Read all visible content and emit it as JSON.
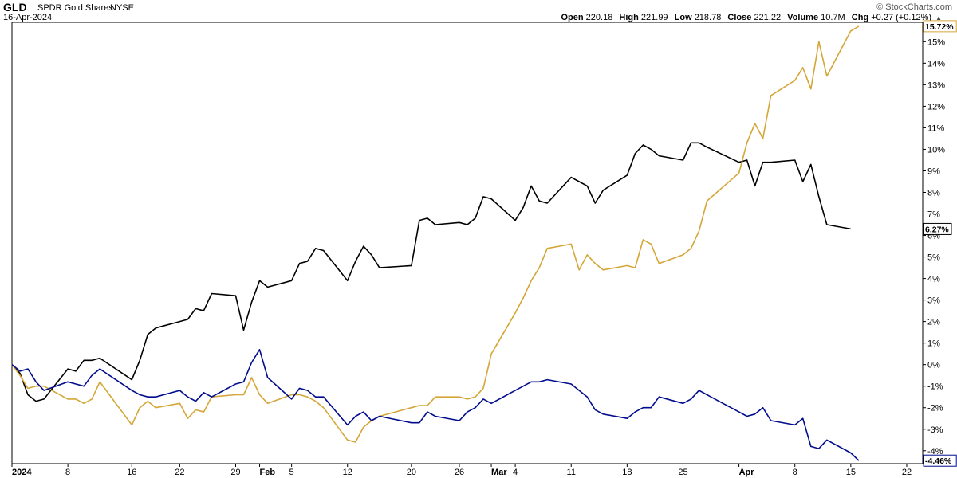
{
  "header": {
    "symbol": "GLD",
    "name": "SPDR Gold Shares",
    "exchange": "NYSE",
    "date": "16-Apr-2024",
    "brand": "© StockCharts.com",
    "open_label": "Open",
    "open": "220.18",
    "high_label": "High",
    "high": "221.99",
    "low_label": "Low",
    "low": "218.78",
    "close_label": "Close",
    "close": "221.22",
    "volume_label": "Volume",
    "volume": "10.7M",
    "chg_label": "Chg",
    "chg": "+0.27 (+0.12%)"
  },
  "chart_data": {
    "type": "line",
    "title": "",
    "xlabel": "",
    "ylabel": "",
    "x_range": [
      "2024-01-01",
      "2024-04-24"
    ],
    "ylim": [
      -4.6,
      15.9
    ],
    "grid": false,
    "y_axis_position": "right",
    "y_ticks": [
      -4,
      -3,
      -2,
      -1,
      0,
      1,
      2,
      3,
      4,
      5,
      6,
      7,
      8,
      9,
      10,
      11,
      12,
      13,
      14,
      15
    ],
    "y_tick_labels": [
      "-4%",
      "-3%",
      "-2%",
      "-1%",
      "0%",
      "1%",
      "2%",
      "3%",
      "4%",
      "5%",
      "6%",
      "7%",
      "8%",
      "9%",
      "10%",
      "11%",
      "12%",
      "13%",
      "14%",
      "15%"
    ],
    "x_ticks": [
      {
        "date": "2024-01-01",
        "label": "2024",
        "bold": true
      },
      {
        "date": "2024-01-08",
        "label": "8"
      },
      {
        "date": "2024-01-16",
        "label": "16"
      },
      {
        "date": "2024-01-22",
        "label": "22"
      },
      {
        "date": "2024-01-29",
        "label": "29"
      },
      {
        "date": "2024-02-01",
        "label": "Feb",
        "bold": true
      },
      {
        "date": "2024-02-05",
        "label": "5"
      },
      {
        "date": "2024-02-12",
        "label": "12"
      },
      {
        "date": "2024-02-20",
        "label": "20"
      },
      {
        "date": "2024-02-26",
        "label": "26"
      },
      {
        "date": "2024-03-01",
        "label": "Mar",
        "bold": true
      },
      {
        "date": "2024-03-04",
        "label": "4"
      },
      {
        "date": "2024-03-11",
        "label": "11"
      },
      {
        "date": "2024-03-18",
        "label": "18"
      },
      {
        "date": "2024-03-25",
        "label": "25"
      },
      {
        "date": "2024-04-01",
        "label": "Apr",
        "bold": true
      },
      {
        "date": "2024-04-08",
        "label": "8"
      },
      {
        "date": "2024-04-15",
        "label": "15"
      },
      {
        "date": "2024-04-22",
        "label": "22"
      }
    ],
    "series": [
      {
        "color": "#000000",
        "end_label": "6.27%",
        "points": [
          [
            "2024-01-01",
            0.0
          ],
          [
            "2024-01-02",
            -0.4
          ],
          [
            "2024-01-03",
            -1.4
          ],
          [
            "2024-01-04",
            -1.7
          ],
          [
            "2024-01-05",
            -1.6
          ],
          [
            "2024-01-08",
            -0.2
          ],
          [
            "2024-01-09",
            -0.3
          ],
          [
            "2024-01-10",
            0.2
          ],
          [
            "2024-01-11",
            0.2
          ],
          [
            "2024-01-12",
            0.3
          ],
          [
            "2024-01-16",
            -0.7
          ],
          [
            "2024-01-17",
            0.2
          ],
          [
            "2024-01-18",
            1.4
          ],
          [
            "2024-01-19",
            1.7
          ],
          [
            "2024-01-22",
            2.0
          ],
          [
            "2024-01-23",
            2.1
          ],
          [
            "2024-01-24",
            2.6
          ],
          [
            "2024-01-25",
            2.5
          ],
          [
            "2024-01-26",
            3.3
          ],
          [
            "2024-01-29",
            3.2
          ],
          [
            "2024-01-30",
            1.6
          ],
          [
            "2024-01-31",
            2.9
          ],
          [
            "2024-02-01",
            3.9
          ],
          [
            "2024-02-02",
            3.6
          ],
          [
            "2024-02-05",
            3.9
          ],
          [
            "2024-02-06",
            4.7
          ],
          [
            "2024-02-07",
            4.8
          ],
          [
            "2024-02-08",
            5.4
          ],
          [
            "2024-02-09",
            5.3
          ],
          [
            "2024-02-12",
            3.9
          ],
          [
            "2024-02-13",
            4.8
          ],
          [
            "2024-02-14",
            5.5
          ],
          [
            "2024-02-15",
            5.1
          ],
          [
            "2024-02-16",
            4.5
          ],
          [
            "2024-02-20",
            4.6
          ],
          [
            "2024-02-21",
            6.7
          ],
          [
            "2024-02-22",
            6.8
          ],
          [
            "2024-02-23",
            6.5
          ],
          [
            "2024-02-26",
            6.6
          ],
          [
            "2024-02-27",
            6.5
          ],
          [
            "2024-02-28",
            6.8
          ],
          [
            "2024-02-29",
            7.8
          ],
          [
            "2024-03-01",
            7.7
          ],
          [
            "2024-03-04",
            6.7
          ],
          [
            "2024-03-05",
            7.3
          ],
          [
            "2024-03-06",
            8.3
          ],
          [
            "2024-03-07",
            7.6
          ],
          [
            "2024-03-08",
            7.5
          ],
          [
            "2024-03-11",
            8.7
          ],
          [
            "2024-03-12",
            8.5
          ],
          [
            "2024-03-13",
            8.3
          ],
          [
            "2024-03-14",
            7.5
          ],
          [
            "2024-03-15",
            8.1
          ],
          [
            "2024-03-18",
            8.8
          ],
          [
            "2024-03-19",
            9.8
          ],
          [
            "2024-03-20",
            10.2
          ],
          [
            "2024-03-21",
            10.0
          ],
          [
            "2024-03-22",
            9.7
          ],
          [
            "2024-03-25",
            9.5
          ],
          [
            "2024-03-26",
            10.3
          ],
          [
            "2024-03-27",
            10.3
          ],
          [
            "2024-03-28",
            10.1
          ],
          [
            "2024-04-01",
            9.4
          ],
          [
            "2024-04-02",
            9.5
          ],
          [
            "2024-04-03",
            8.3
          ],
          [
            "2024-04-04",
            9.4
          ],
          [
            "2024-04-05",
            9.4
          ],
          [
            "2024-04-08",
            9.5
          ],
          [
            "2024-04-09",
            8.5
          ],
          [
            "2024-04-10",
            9.3
          ],
          [
            "2024-04-11",
            7.8
          ],
          [
            "2024-04-12",
            6.5
          ],
          [
            "2024-04-15",
            6.3
          ]
        ]
      },
      {
        "color": "#d4a637",
        "end_label": "15.72%",
        "points": [
          [
            "2024-01-01",
            0.0
          ],
          [
            "2024-01-02",
            -0.5
          ],
          [
            "2024-01-03",
            -1.1
          ],
          [
            "2024-01-04",
            -1.0
          ],
          [
            "2024-01-05",
            -1.0
          ],
          [
            "2024-01-08",
            -1.6
          ],
          [
            "2024-01-09",
            -1.6
          ],
          [
            "2024-01-10",
            -1.8
          ],
          [
            "2024-01-11",
            -1.6
          ],
          [
            "2024-01-12",
            -0.8
          ],
          [
            "2024-01-16",
            -2.8
          ],
          [
            "2024-01-17",
            -2.0
          ],
          [
            "2024-01-18",
            -1.7
          ],
          [
            "2024-01-19",
            -2.0
          ],
          [
            "2024-01-22",
            -1.8
          ],
          [
            "2024-01-23",
            -2.5
          ],
          [
            "2024-01-24",
            -2.1
          ],
          [
            "2024-01-25",
            -2.2
          ],
          [
            "2024-01-26",
            -1.5
          ],
          [
            "2024-01-29",
            -1.4
          ],
          [
            "2024-01-30",
            -1.4
          ],
          [
            "2024-01-31",
            -0.6
          ],
          [
            "2024-02-01",
            -1.4
          ],
          [
            "2024-02-02",
            -1.8
          ],
          [
            "2024-02-05",
            -1.4
          ],
          [
            "2024-02-06",
            -1.4
          ],
          [
            "2024-02-07",
            -1.5
          ],
          [
            "2024-02-08",
            -1.7
          ],
          [
            "2024-02-09",
            -2.0
          ],
          [
            "2024-02-12",
            -3.5
          ],
          [
            "2024-02-13",
            -3.6
          ],
          [
            "2024-02-14",
            -2.9
          ],
          [
            "2024-02-15",
            -2.6
          ],
          [
            "2024-02-16",
            -2.4
          ],
          [
            "2024-02-20",
            -2.0
          ],
          [
            "2024-02-21",
            -1.9
          ],
          [
            "2024-02-22",
            -1.9
          ],
          [
            "2024-02-23",
            -1.5
          ],
          [
            "2024-02-26",
            -1.5
          ],
          [
            "2024-02-27",
            -1.6
          ],
          [
            "2024-02-28",
            -1.5
          ],
          [
            "2024-02-29",
            -1.1
          ],
          [
            "2024-03-01",
            0.5
          ],
          [
            "2024-03-04",
            2.4
          ],
          [
            "2024-03-05",
            3.1
          ],
          [
            "2024-03-06",
            3.9
          ],
          [
            "2024-03-07",
            4.5
          ],
          [
            "2024-03-08",
            5.4
          ],
          [
            "2024-03-11",
            5.6
          ],
          [
            "2024-03-12",
            4.4
          ],
          [
            "2024-03-13",
            5.1
          ],
          [
            "2024-03-14",
            4.7
          ],
          [
            "2024-03-15",
            4.4
          ],
          [
            "2024-03-18",
            4.6
          ],
          [
            "2024-03-19",
            4.5
          ],
          [
            "2024-03-20",
            5.8
          ],
          [
            "2024-03-21",
            5.6
          ],
          [
            "2024-03-22",
            4.7
          ],
          [
            "2024-03-25",
            5.1
          ],
          [
            "2024-03-26",
            5.4
          ],
          [
            "2024-03-27",
            6.2
          ],
          [
            "2024-03-28",
            7.6
          ],
          [
            "2024-04-01",
            8.9
          ],
          [
            "2024-04-02",
            10.3
          ],
          [
            "2024-04-03",
            11.2
          ],
          [
            "2024-04-04",
            10.5
          ],
          [
            "2024-04-05",
            12.5
          ],
          [
            "2024-04-08",
            13.2
          ],
          [
            "2024-04-09",
            13.8
          ],
          [
            "2024-04-10",
            12.8
          ],
          [
            "2024-04-11",
            15.0
          ],
          [
            "2024-04-12",
            13.4
          ],
          [
            "2024-04-15",
            15.5
          ],
          [
            "2024-04-16",
            15.72
          ]
        ]
      },
      {
        "color": "#000c8c",
        "end_label": "-4.46%",
        "points": [
          [
            "2024-01-01",
            0.0
          ],
          [
            "2024-01-02",
            -0.3
          ],
          [
            "2024-01-03",
            -0.2
          ],
          [
            "2024-01-04",
            -0.8
          ],
          [
            "2024-01-05",
            -1.2
          ],
          [
            "2024-01-08",
            -0.8
          ],
          [
            "2024-01-09",
            -0.9
          ],
          [
            "2024-01-10",
            -1.0
          ],
          [
            "2024-01-11",
            -0.5
          ],
          [
            "2024-01-12",
            -0.2
          ],
          [
            "2024-01-16",
            -1.2
          ],
          [
            "2024-01-17",
            -1.4
          ],
          [
            "2024-01-18",
            -1.5
          ],
          [
            "2024-01-19",
            -1.5
          ],
          [
            "2024-01-22",
            -1.2
          ],
          [
            "2024-01-23",
            -1.5
          ],
          [
            "2024-01-24",
            -1.7
          ],
          [
            "2024-01-25",
            -1.3
          ],
          [
            "2024-01-26",
            -1.5
          ],
          [
            "2024-01-29",
            -0.9
          ],
          [
            "2024-01-30",
            -0.8
          ],
          [
            "2024-01-31",
            0.1
          ],
          [
            "2024-02-01",
            0.7
          ],
          [
            "2024-02-02",
            -0.6
          ],
          [
            "2024-02-05",
            -1.6
          ],
          [
            "2024-02-06",
            -1.1
          ],
          [
            "2024-02-07",
            -1.2
          ],
          [
            "2024-02-08",
            -1.5
          ],
          [
            "2024-02-09",
            -1.5
          ],
          [
            "2024-02-12",
            -2.8
          ],
          [
            "2024-02-13",
            -2.4
          ],
          [
            "2024-02-14",
            -2.2
          ],
          [
            "2024-02-15",
            -2.6
          ],
          [
            "2024-02-16",
            -2.4
          ],
          [
            "2024-02-20",
            -2.7
          ],
          [
            "2024-02-21",
            -2.7
          ],
          [
            "2024-02-22",
            -2.2
          ],
          [
            "2024-02-23",
            -2.4
          ],
          [
            "2024-02-26",
            -2.6
          ],
          [
            "2024-02-27",
            -2.2
          ],
          [
            "2024-02-28",
            -2.0
          ],
          [
            "2024-02-29",
            -1.6
          ],
          [
            "2024-03-01",
            -1.8
          ],
          [
            "2024-03-04",
            -1.2
          ],
          [
            "2024-03-05",
            -1.0
          ],
          [
            "2024-03-06",
            -0.8
          ],
          [
            "2024-03-07",
            -0.8
          ],
          [
            "2024-03-08",
            -0.7
          ],
          [
            "2024-03-11",
            -0.9
          ],
          [
            "2024-03-12",
            -1.2
          ],
          [
            "2024-03-13",
            -1.5
          ],
          [
            "2024-03-14",
            -2.1
          ],
          [
            "2024-03-15",
            -2.3
          ],
          [
            "2024-03-18",
            -2.5
          ],
          [
            "2024-03-19",
            -2.2
          ],
          [
            "2024-03-20",
            -2.0
          ],
          [
            "2024-03-21",
            -2.0
          ],
          [
            "2024-03-22",
            -1.5
          ],
          [
            "2024-03-25",
            -1.8
          ],
          [
            "2024-03-26",
            -1.6
          ],
          [
            "2024-03-27",
            -1.2
          ],
          [
            "2024-03-28",
            -1.4
          ],
          [
            "2024-04-01",
            -2.2
          ],
          [
            "2024-04-02",
            -2.4
          ],
          [
            "2024-04-03",
            -2.3
          ],
          [
            "2024-04-04",
            -2.0
          ],
          [
            "2024-04-05",
            -2.6
          ],
          [
            "2024-04-08",
            -2.8
          ],
          [
            "2024-04-09",
            -2.5
          ],
          [
            "2024-04-10",
            -3.8
          ],
          [
            "2024-04-11",
            -3.9
          ],
          [
            "2024-04-12",
            -3.5
          ],
          [
            "2024-04-15",
            -4.1
          ],
          [
            "2024-04-16",
            -4.46
          ]
        ]
      }
    ]
  }
}
